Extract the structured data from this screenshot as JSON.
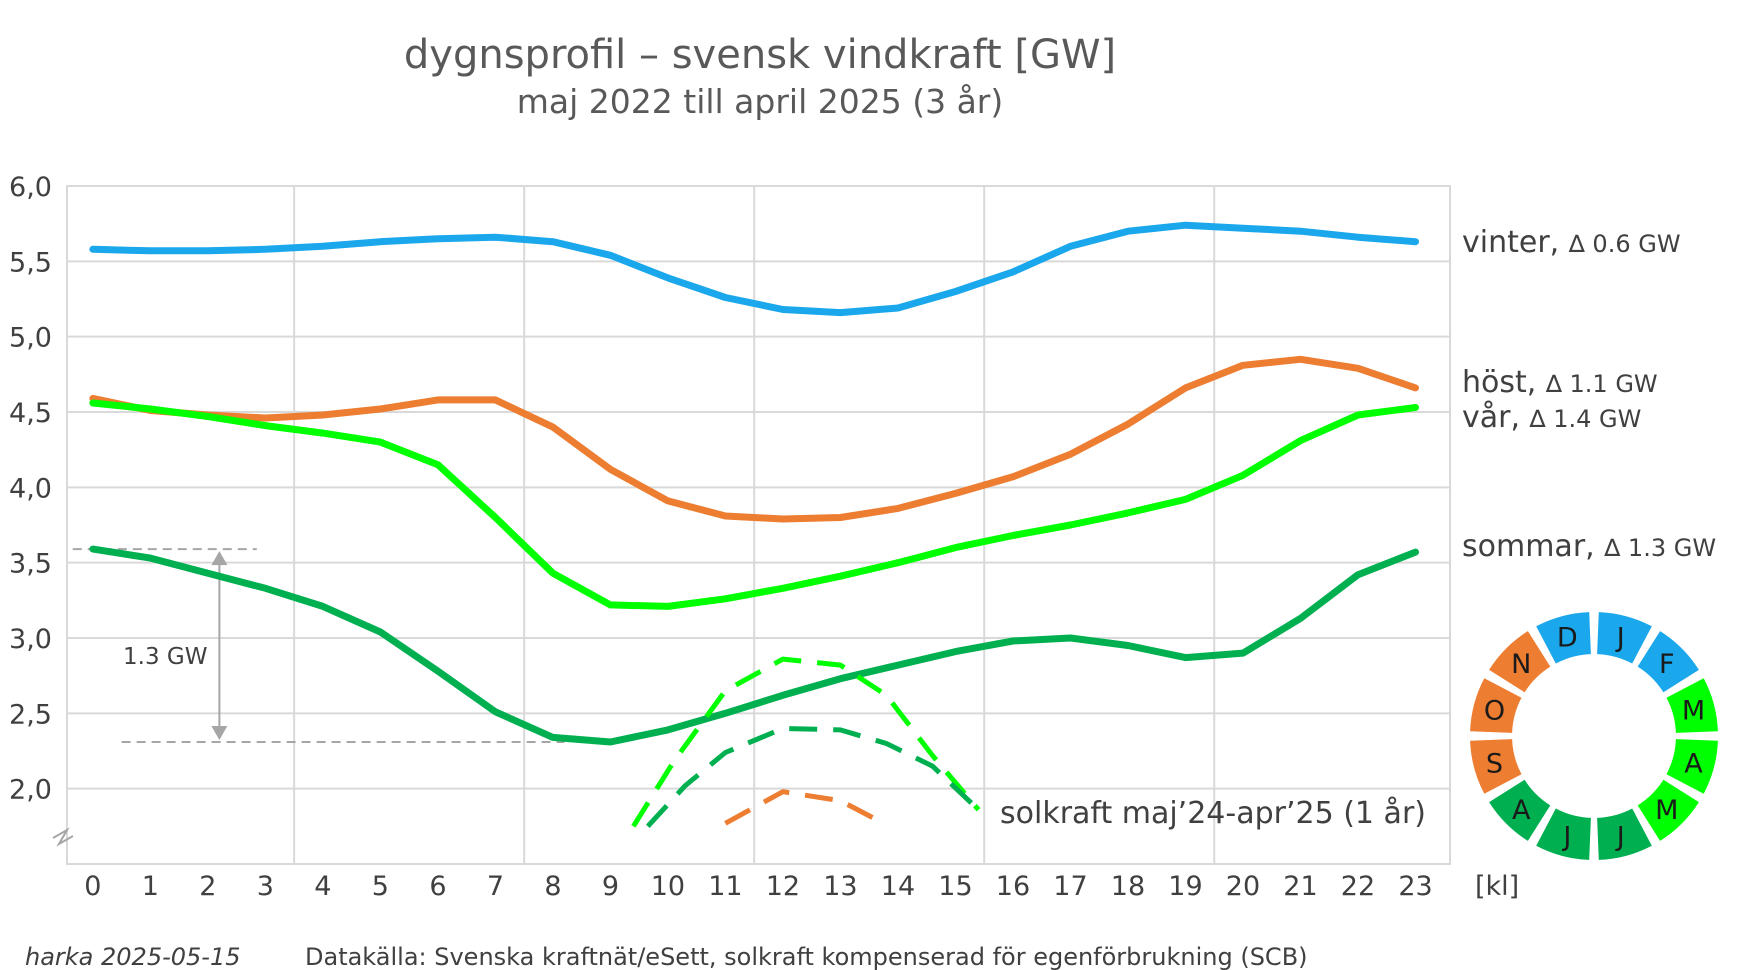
{
  "chart_data": {
    "type": "line",
    "title": "dygnsprofil – svensk vindkraft [GW]",
    "subtitle": "maj 2022 till april 2025 (3 år)",
    "xlabel": "[kl]",
    "ylabel": "",
    "x": [
      0,
      1,
      2,
      3,
      4,
      5,
      6,
      7,
      8,
      9,
      10,
      11,
      12,
      13,
      14,
      15,
      16,
      17,
      18,
      19,
      20,
      21,
      22,
      23
    ],
    "x_tick_labels": [
      "0",
      "1",
      "2",
      "3",
      "4",
      "5",
      "6",
      "7",
      "8",
      "9",
      "10",
      "11",
      "12",
      "13",
      "14",
      "15",
      "16",
      "17",
      "18",
      "19",
      "20",
      "21",
      "22",
      "23"
    ],
    "ylim": [
      1.5,
      6.0
    ],
    "y_tick_labels": [
      "2,0",
      "2,5",
      "3,0",
      "3,5",
      "4,0",
      "4,5",
      "5,0",
      "5,5",
      "6,0"
    ],
    "grid": true,
    "series": [
      {
        "name": "vinter",
        "delta_label": "∆ 0.6 GW",
        "color": "#1aa7ec",
        "values": [
          5.58,
          5.57,
          5.57,
          5.58,
          5.6,
          5.63,
          5.65,
          5.66,
          5.63,
          5.54,
          5.39,
          5.26,
          5.18,
          5.16,
          5.19,
          5.3,
          5.43,
          5.6,
          5.7,
          5.74,
          5.72,
          5.7,
          5.66,
          5.63
        ]
      },
      {
        "name": "höst",
        "delta_label": "∆ 1.1 GW",
        "color": "#ed7d31",
        "values": [
          4.59,
          4.51,
          4.48,
          4.46,
          4.48,
          4.52,
          4.58,
          4.58,
          4.4,
          4.12,
          3.91,
          3.81,
          3.79,
          3.8,
          3.86,
          3.96,
          4.07,
          4.22,
          4.42,
          4.66,
          4.81,
          4.85,
          4.79,
          4.66
        ]
      },
      {
        "name": "vår",
        "delta_label": "∆ 1.4 GW",
        "color": "#00ff00",
        "values": [
          4.56,
          4.52,
          4.47,
          4.41,
          4.36,
          4.3,
          4.15,
          3.8,
          3.43,
          3.22,
          3.21,
          3.26,
          3.33,
          3.41,
          3.5,
          3.6,
          3.68,
          3.75,
          3.83,
          3.92,
          4.08,
          4.31,
          4.48,
          4.53
        ]
      },
      {
        "name": "sommar",
        "delta_label": "∆ 1.3 GW",
        "color": "#00b050",
        "values": [
          3.59,
          3.53,
          3.43,
          3.33,
          3.21,
          3.04,
          2.78,
          2.51,
          2.34,
          2.31,
          2.39,
          2.5,
          2.62,
          2.73,
          2.82,
          2.91,
          2.98,
          3.0,
          2.95,
          2.87,
          2.9,
          3.13,
          3.42,
          3.57
        ]
      }
    ],
    "solar_series": [
      {
        "season": "vår",
        "color": "#00ff00",
        "x": [
          9.4,
          10.1,
          11,
          12,
          13,
          13.8,
          14.6,
          15.4
        ],
        "values": [
          1.75,
          2.18,
          2.65,
          2.86,
          2.82,
          2.62,
          2.22,
          1.86
        ]
      },
      {
        "season": "sommar",
        "color": "#00b050",
        "x": [
          9.65,
          10.3,
          11,
          12,
          13,
          13.8,
          14.6,
          15.4
        ],
        "values": [
          1.75,
          2.02,
          2.24,
          2.4,
          2.39,
          2.3,
          2.15,
          1.86
        ]
      },
      {
        "season": "höst",
        "color": "#ed7d31",
        "x": [
          11,
          12,
          13,
          13.7
        ],
        "values": [
          1.77,
          1.98,
          1.92,
          1.78
        ]
      }
    ],
    "annotations": {
      "amplitude_label": "1.3 GW",
      "solar_label": "solkraft maj’24-apr’25 (1 år)"
    },
    "season_wheel": [
      {
        "letter": "J",
        "color": "#1aa7ec"
      },
      {
        "letter": "F",
        "color": "#1aa7ec"
      },
      {
        "letter": "M",
        "color": "#00ff00"
      },
      {
        "letter": "A",
        "color": "#00ff00"
      },
      {
        "letter": "M",
        "color": "#00ff00"
      },
      {
        "letter": "J",
        "color": "#00b050"
      },
      {
        "letter": "J",
        "color": "#00b050"
      },
      {
        "letter": "A",
        "color": "#00b050"
      },
      {
        "letter": "S",
        "color": "#ed7d31"
      },
      {
        "letter": "O",
        "color": "#ed7d31"
      },
      {
        "letter": "N",
        "color": "#ed7d31"
      },
      {
        "letter": "D",
        "color": "#1aa7ec"
      }
    ]
  },
  "footer": {
    "author": "harka 2025-05-15",
    "source": "Datakälla: Svenska kraftnät/eSett, solkraft kompenserad för egenförbrukning (SCB)"
  }
}
